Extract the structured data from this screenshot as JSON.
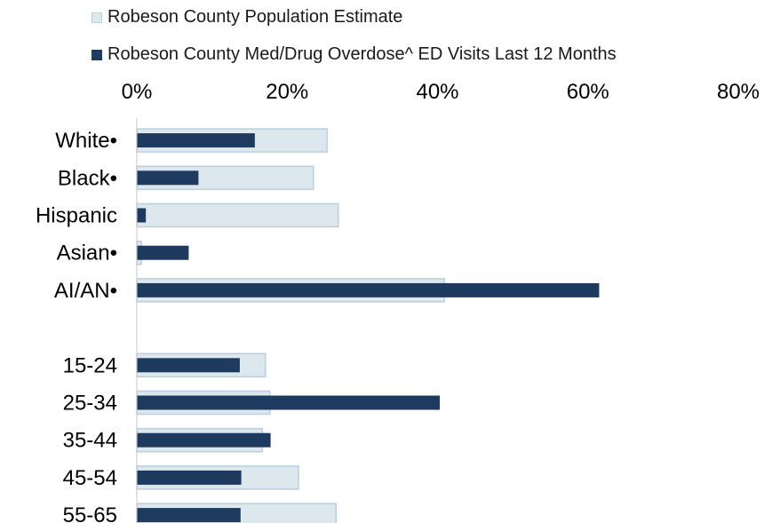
{
  "chart_data": {
    "type": "bar",
    "orientation": "horizontal",
    "title": "",
    "xlim": [
      0,
      80
    ],
    "x_ticks": [
      "0%",
      "20%",
      "40%",
      "60%",
      "80%"
    ],
    "legend_position": "top",
    "categories": [
      "White•",
      "Black•",
      "Hispanic",
      "Asian•",
      "AI/AN•",
      "",
      "15-24",
      "25-34",
      "35-44",
      "45-54",
      "55-65"
    ],
    "series": [
      {
        "name": "Robeson County Population Estimate",
        "color": "#dde7ee",
        "stroke": "#b9cfdc",
        "values": [
          25.3,
          23.5,
          26.8,
          0.6,
          40.9,
          null,
          17.1,
          17.7,
          16.7,
          21.5,
          26.5
        ]
      },
      {
        "name": "Robeson County Med/Drug Overdose^ ED Visits Last 12 Months",
        "color": "#1f3a5f",
        "stroke": "#1f3a5f",
        "values": [
          15.7,
          8.2,
          1.2,
          6.9,
          61.5,
          null,
          13.7,
          40.3,
          17.8,
          13.9,
          13.8
        ]
      }
    ]
  }
}
